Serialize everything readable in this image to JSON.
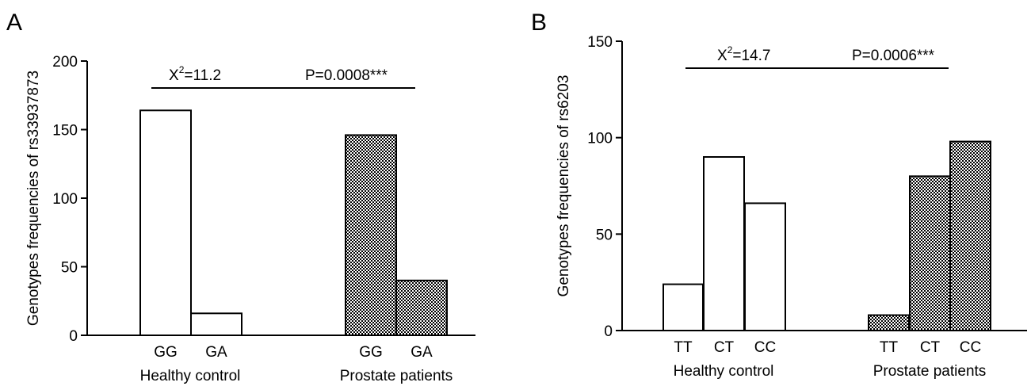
{
  "chart_data": [
    {
      "panel": "A",
      "type": "bar",
      "ylabel": "Genotypes frequencies of rs33937873",
      "ylim": [
        0,
        200
      ],
      "yticks": [
        0,
        50,
        100,
        150,
        200
      ],
      "groups": [
        {
          "name": "Healthy control",
          "categories": [
            "GG",
            "GA"
          ],
          "values": [
            164,
            16
          ],
          "fill": "open"
        },
        {
          "name": "Prostate patients",
          "categories": [
            "GG",
            "GA"
          ],
          "values": [
            146,
            40
          ],
          "fill": "checkered"
        }
      ],
      "annotation": {
        "chi_label": "X",
        "chi_sup": "2",
        "chi_value": "=11.2",
        "p_text": "P=0.0008***"
      }
    },
    {
      "panel": "B",
      "type": "bar",
      "ylabel": "Genotypes frequencies of rs6203",
      "ylim": [
        0,
        150
      ],
      "yticks": [
        0,
        50,
        100,
        150
      ],
      "groups": [
        {
          "name": "Healthy control",
          "categories": [
            "TT",
            "CT",
            "CC"
          ],
          "values": [
            24,
            90,
            66
          ],
          "fill": "open"
        },
        {
          "name": "Prostate patients",
          "categories": [
            "TT",
            "CT",
            "CC"
          ],
          "values": [
            8,
            80,
            98
          ],
          "fill": "checkered"
        }
      ],
      "annotation": {
        "chi_label": "X",
        "chi_sup": "2",
        "chi_value": "=14.7",
        "p_text": "P=0.0006***"
      }
    }
  ],
  "colors": {
    "ink": "#000000",
    "bar_open": "#ffffff",
    "check_dark": "#000000",
    "check_light": "#ffffff"
  }
}
